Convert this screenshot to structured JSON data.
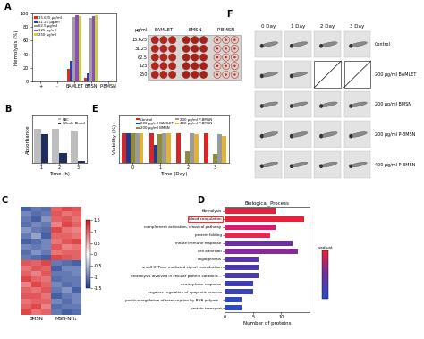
{
  "chart_data": [
    {
      "panel_label": "A",
      "type": "bar",
      "ylabel": "Hemolysis (%)",
      "categories": [
        "+",
        "-",
        "BAMLET",
        "BMSN",
        "P-BMSN"
      ],
      "series": [
        {
          "name": "15.625 µg/ml",
          "color": "#e8291c",
          "values": [
            0,
            0,
            18,
            5,
            0.5
          ]
        },
        {
          "name": "31.25 µg/ml",
          "color": "#2b3fa8",
          "values": [
            0,
            0,
            30,
            12,
            0.8
          ]
        },
        {
          "name": "62.5 µg/ml",
          "color": "#a0a0a0",
          "values": [
            0,
            0,
            95,
            94,
            1
          ]
        },
        {
          "name": "125 µg/ml",
          "color": "#8a4fb0",
          "values": [
            0,
            0,
            97,
            96,
            1
          ]
        },
        {
          "name": "250 µg/ml",
          "color": "#c8d23c",
          "values": [
            0,
            0,
            96,
            97,
            1.2
          ]
        }
      ],
      "ylim": [
        0,
        100
      ],
      "yticks": [
        0,
        20,
        40,
        60,
        80,
        100
      ],
      "legend": "upper left"
    },
    {
      "type": "plate",
      "unit_label": "µg/ml",
      "rows": [
        "15.625",
        "31.25",
        "62.5",
        "125",
        "250"
      ],
      "columns": [
        "BAMLET",
        "BMSN",
        "P-BMSN"
      ],
      "colors": [
        "#b3261e",
        "#a8201a",
        "#e7c9c4"
      ]
    },
    {
      "panel_label": "B",
      "type": "bar",
      "ylabel": "Absorbance",
      "xlabel": "Time (h)",
      "categories": [
        "1",
        "2",
        "3"
      ],
      "series": [
        {
          "name": "RBC",
          "color": "#bdbdbd",
          "values": [
            3.6,
            3.6,
            3.4
          ]
        },
        {
          "name": "Whole Blood",
          "color": "#1f2d5c",
          "values": [
            3.0,
            1.0,
            0.2
          ]
        }
      ],
      "ylim": [
        0,
        5
      ],
      "tick_labels": "x",
      "legend": "upper right"
    },
    {
      "panel_label": "E",
      "type": "bar",
      "ylabel": "Viability (%)",
      "xlabel": "Time (Day)",
      "categories": [
        "0",
        "1",
        "2",
        "3"
      ],
      "series": [
        {
          "name": "Control",
          "color": "#d62728",
          "values": [
            100,
            100,
            100,
            100
          ]
        },
        {
          "name": "200 µg/ml BAMLET",
          "color": "#1f3a93",
          "values": [
            100,
            60,
            0,
            0
          ]
        },
        {
          "name": "200 µg/ml BMSN",
          "color": "#8c8c3c",
          "values": [
            100,
            95,
            40,
            30
          ]
        },
        {
          "name": "200 µg/ml P-BMSN",
          "color": "#9a9a9a",
          "values": [
            100,
            100,
            98,
            95
          ]
        },
        {
          "name": "400 µg/ml P-BMSN",
          "color": "#e0b43a",
          "values": [
            100,
            100,
            95,
            90
          ]
        }
      ],
      "ylim": [
        0,
        160
      ],
      "tick_labels": "x",
      "legend": "upper center"
    },
    {
      "panel_label": "C",
      "type": "heatmap",
      "column_labels": [
        "BMSN",
        "MSN-NH₂"
      ],
      "cells": [
        [
          -1.2,
          -1.0,
          -1.1,
          1.0,
          1.2,
          1.1
        ],
        [
          -0.9,
          -1.1,
          -1.0,
          1.1,
          0.9,
          1.0
        ],
        [
          -1.0,
          -1.2,
          -0.8,
          1.0,
          1.1,
          0.9
        ],
        [
          -1.1,
          -0.9,
          -1.0,
          0.8,
          1.2,
          1.0
        ],
        [
          -0.8,
          -1.0,
          -1.1,
          1.2,
          0.9,
          0.8
        ],
        [
          -1.0,
          -0.7,
          -1.2,
          1.0,
          1.0,
          0.9
        ],
        [
          -1.2,
          -1.1,
          -0.9,
          0.9,
          1.1,
          1.2
        ],
        [
          -0.9,
          -1.0,
          -0.9,
          1.1,
          0.8,
          0.9
        ],
        [
          -1.1,
          -0.8,
          -1.0,
          0.9,
          1.0,
          1.0
        ],
        [
          -1.0,
          -1.1,
          -1.2,
          1.2,
          1.1,
          1.0
        ],
        [
          1.1,
          1.0,
          1.2,
          -1.0,
          -1.1,
          -1.2
        ],
        [
          0.9,
          1.1,
          1.0,
          -1.2,
          -0.9,
          -0.9
        ],
        [
          1.0,
          0.8,
          1.1,
          -1.0,
          -1.0,
          -0.9
        ],
        [
          1.2,
          1.0,
          0.9,
          -1.1,
          -1.0,
          -1.0
        ],
        [
          0.8,
          1.2,
          1.0,
          -0.9,
          -1.1,
          -1.0
        ],
        [
          1.0,
          0.9,
          1.1,
          -1.0,
          -0.8,
          -1.2
        ],
        [
          1.1,
          1.1,
          0.9,
          -1.2,
          -1.0,
          -0.9
        ],
        [
          0.9,
          1.0,
          1.0,
          -0.9,
          -1.1,
          -0.9
        ],
        [
          1.0,
          1.2,
          0.8,
          -1.1,
          -1.0,
          -1.0
        ],
        [
          1.2,
          0.9,
          1.0,
          -1.0,
          -1.2,
          -1.1
        ]
      ],
      "color_range": [
        -1.5,
        1.5
      ],
      "colorbar_ticks": [
        1.5,
        1,
        0.5,
        0,
        -0.5,
        -1,
        -1.5
      ]
    },
    {
      "panel_label": "D",
      "type": "bar",
      "orientation": "horizontal",
      "title": "Biological_Process",
      "xlabel": "Number of proteins",
      "categories": [
        "fibrinolysis",
        "blood coagulation",
        "complement activation, classical pathway",
        "protein folding",
        "innate immune response",
        "cell adhesion",
        "angiogenesis",
        "small GTPase mediated signal transduction",
        "proteolysis involved in cellular protein catabolic...",
        "acute-phase response",
        "negative regulation of apoptotic process",
        "positive regulation of transcription by RNA polyme...",
        "protein transport"
      ],
      "values": [
        9,
        14,
        9,
        8,
        12,
        13,
        6,
        6,
        6,
        5,
        5,
        3,
        3
      ],
      "colors": [
        "#e8203a",
        "#e8203a",
        "#d61e6a",
        "#e02a55",
        "#6a2fa0",
        "#8a2a9a",
        "#5a37a8",
        "#4a3ab0",
        "#4a3ab0",
        "#3d3fb8",
        "#3a42bb",
        "#2f48c4",
        "#2a4ccc"
      ],
      "xlim": [
        0,
        15
      ],
      "xticks": [
        0,
        5,
        10
      ],
      "colorbar_label": "p.adjust",
      "highlight": "blood coagulation"
    },
    {
      "panel_label": "F",
      "type": "image_grid",
      "columns": [
        "0 Day",
        "1 Day",
        "2 Day",
        "3 Day"
      ],
      "rows": [
        "Control",
        "200 µg/ml BAMLET",
        "200 µg/ml BMSN",
        "200 µg/ml P-BMSN",
        "400 µg/ml P-BMSN"
      ],
      "crossed_out": [
        [
          1,
          2
        ],
        [
          1,
          3
        ]
      ]
    }
  ]
}
